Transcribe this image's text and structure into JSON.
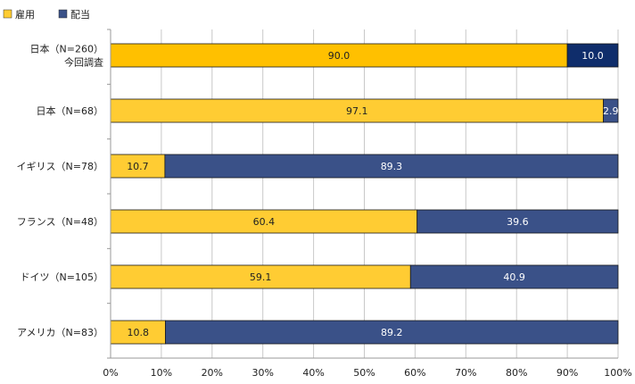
{
  "chart_data": {
    "type": "bar",
    "orientation": "horizontal-stacked",
    "categories": [
      [
        "日本（N=260）",
        "今回調査"
      ],
      [
        "日本（N=68）"
      ],
      [
        "イギリス（N=78）"
      ],
      [
        "フランス（N=48）"
      ],
      [
        "ドイツ（N=105）"
      ],
      [
        "アメリカ（N=83）"
      ]
    ],
    "series": [
      {
        "name": "雇用",
        "values": [
          90.0,
          97.1,
          10.7,
          60.4,
          59.1,
          10.8
        ],
        "labels": [
          "90.0",
          "97.1",
          "10.7",
          "60.4",
          "59.1",
          "10.8"
        ]
      },
      {
        "name": "配当",
        "values": [
          10.0,
          2.9,
          89.3,
          39.6,
          40.9,
          89.2
        ],
        "labels": [
          "10.0",
          "2.9",
          "89.3",
          "39.6",
          "40.9",
          "89.2"
        ]
      }
    ],
    "xlim": [
      0,
      100
    ],
    "xticks": [
      "0%",
      "10%",
      "20%",
      "30%",
      "40%",
      "50%",
      "60%",
      "70%",
      "80%",
      "90%",
      "100%"
    ],
    "grid": true,
    "legend_position": "top-left",
    "colors": {
      "highlight_employment": "#FFC000",
      "highlight_dividend": "#0F2D6B",
      "employment": "#FFCC33",
      "dividend": "#3A5188"
    }
  }
}
